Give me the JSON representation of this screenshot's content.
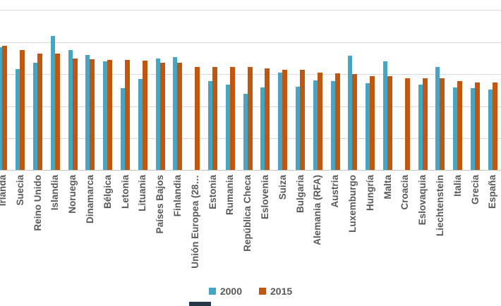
{
  "chart_data": {
    "type": "bar",
    "title": "",
    "categories": [
      "Irlanda",
      "Suecia",
      "Reino Unido",
      "Islandia",
      "Noruega",
      "Dinamarca",
      "Bélgica",
      "Letonia",
      "Lituania",
      "Países Bajos",
      "Finlandia",
      "Unión Europea (28…",
      "Estonia",
      "Rumania",
      "República Checa",
      "Eslovenia",
      "Suiza",
      "Bulgaria",
      "Alemania (RFA)",
      "Austria",
      "Luxemburgo",
      "Hungría",
      "Malta",
      "Croacia",
      "Eslovaquia",
      "Liechtenstein",
      "Italia",
      "Grecia",
      "España"
    ],
    "series": [
      {
        "name": "2000",
        "color": "#45a6c4",
        "values": [
          3.83,
          3.15,
          3.33,
          4.17,
          3.74,
          3.59,
          3.39,
          2.54,
          2.83,
          3.48,
          3.52,
          null,
          2.78,
          2.67,
          2.37,
          2.57,
          3.04,
          2.59,
          2.8,
          2.78,
          3.57,
          2.7,
          3.39,
          null,
          2.65,
          3.2,
          2.57,
          2.54,
          2.5
        ]
      },
      {
        "name": "2015",
        "color": "#bf5710",
        "values": [
          3.87,
          3.74,
          3.63,
          3.63,
          3.48,
          3.46,
          3.43,
          3.43,
          3.41,
          3.35,
          3.33,
          3.2,
          3.2,
          3.2,
          3.2,
          3.17,
          3.13,
          3.11,
          3.04,
          3.02,
          2.98,
          2.93,
          2.93,
          2.85,
          2.85,
          2.85,
          2.76,
          2.72,
          2.72
        ]
      }
    ],
    "xlabel": "",
    "ylabel": "",
    "ylim": [
      0,
      5
    ],
    "gridline_step": 1,
    "grid": true,
    "y_tick_labels": [],
    "legend_position": "bottom-center"
  },
  "colors": {
    "series_2000": "#45a6c4",
    "series_2015": "#bf5710",
    "gridline": "#d9d9d9",
    "axis_line": "#c6c6c6",
    "label_text": "#595959",
    "background": "#ffffff",
    "cropped_fragment": "#253646"
  }
}
